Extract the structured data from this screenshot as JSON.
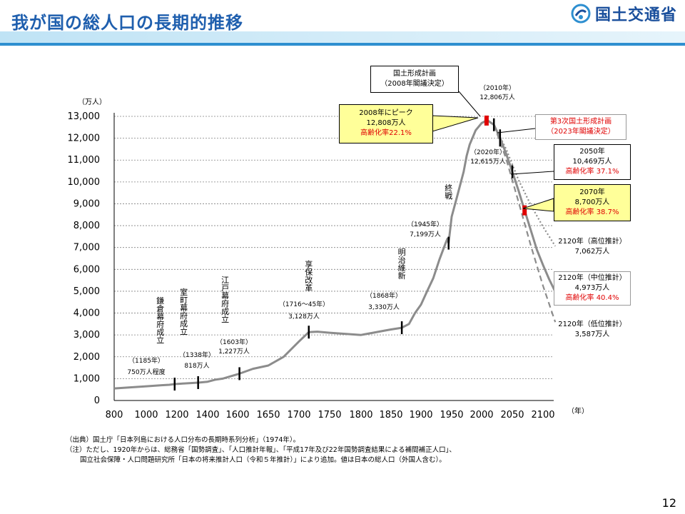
{
  "header": {
    "title": "我が国の総人口の長期的推移",
    "org": "国土交通省"
  },
  "page_number": "12",
  "footnotes": [
    "（出典）国土庁「日本列島における人口分布の長期時系列分析」（1974年）。",
    "（注）ただし、1920年からは、総務省「国勢調査」、「人口推計年報」、「平成17年及び22年国勢調査結果による補間補正人口」、",
    "国立社会保障・人口問題研究所「日本の将来推計人口（令和５年推計）」により追加。値は日本の総人口（外国人含む）。"
  ],
  "chart_data": {
    "type": "line",
    "ylabel": "（万人）",
    "xlabel": "（年）",
    "ylim": [
      0,
      13000
    ],
    "xlim": [
      800,
      2120
    ],
    "y_ticks": [
      "0",
      "1,000",
      "2,000",
      "3,000",
      "4,000",
      "5,000",
      "6,000",
      "7,000",
      "8,000",
      "9,000",
      "10,000",
      "11,000",
      "12,000",
      "13,000"
    ],
    "x_ticks": [
      "800",
      "1000",
      "1200",
      "1400",
      "1600",
      "1650",
      "1700",
      "1750",
      "1800",
      "1850",
      "1900",
      "1950",
      "2000",
      "2050",
      "2100"
    ],
    "grid": true,
    "series": [
      {
        "line": "solid",
        "color": "#8c8c8c",
        "points": [
          [
            800,
            551
          ],
          [
            900,
            600
          ],
          [
            1000,
            650
          ],
          [
            1100,
            700
          ],
          [
            1150,
            720
          ],
          [
            1185,
            750
          ],
          [
            1250,
            780
          ],
          [
            1338,
            818
          ],
          [
            1400,
            860
          ],
          [
            1450,
            950
          ],
          [
            1500,
            1000
          ],
          [
            1550,
            1100
          ],
          [
            1603,
            1227
          ],
          [
            1625,
            1450
          ],
          [
            1650,
            1600
          ],
          [
            1675,
            2000
          ],
          [
            1700,
            2700
          ],
          [
            1716,
            3128
          ],
          [
            1730,
            3150
          ],
          [
            1750,
            3100
          ],
          [
            1800,
            3000
          ],
          [
            1820,
            3100
          ],
          [
            1840,
            3200
          ],
          [
            1850,
            3250
          ],
          [
            1868,
            3330
          ],
          [
            1880,
            3500
          ],
          [
            1890,
            4000
          ],
          [
            1900,
            4384
          ],
          [
            1910,
            5000
          ],
          [
            1920,
            5596
          ],
          [
            1930,
            6445
          ],
          [
            1940,
            7193
          ],
          [
            1943,
            7400
          ],
          [
            1945,
            7199
          ],
          [
            1950,
            8411
          ],
          [
            1960,
            9430
          ],
          [
            1970,
            10467
          ],
          [
            1975,
            11194
          ],
          [
            1980,
            11706
          ],
          [
            1990,
            12361
          ],
          [
            2000,
            12693
          ],
          [
            2008,
            12808
          ],
          [
            2010,
            12806
          ],
          [
            2015,
            12709
          ],
          [
            2020,
            12615
          ],
          [
            2030,
            12012
          ],
          [
            2040,
            11284
          ],
          [
            2050,
            10469
          ],
          [
            2060,
            9615
          ],
          [
            2070,
            8700
          ],
          [
            2080,
            7800
          ],
          [
            2090,
            6900
          ],
          [
            2100,
            6200
          ],
          [
            2110,
            5550
          ],
          [
            2120,
            4973
          ]
        ]
      },
      {
        "line": "dotted",
        "color": "#8c8c8c",
        "points": [
          [
            2020,
            12615
          ],
          [
            2040,
            11500
          ],
          [
            2060,
            10100
          ],
          [
            2080,
            8950
          ],
          [
            2100,
            7950
          ],
          [
            2120,
            7062
          ]
        ]
      },
      {
        "line": "dashed",
        "color": "#8c8c8c",
        "points": [
          [
            2020,
            12615
          ],
          [
            2040,
            11050
          ],
          [
            2060,
            9100
          ],
          [
            2080,
            7100
          ],
          [
            2100,
            5250
          ],
          [
            2120,
            3587
          ]
        ]
      }
    ],
    "event_markers": [
      {
        "year": 1185,
        "value": 750,
        "label": "鎌倉幕府成立",
        "year_text": "（1185年）",
        "value_text": "750万人程度"
      },
      {
        "year": 1338,
        "value": 818,
        "label": "室町幕府成立",
        "year_text": "（1338年）",
        "value_text": "818万人"
      },
      {
        "year": 1603,
        "value": 1227,
        "label": "江戸幕府成立",
        "year_text": "（1603年）",
        "value_text": "1,227万人"
      },
      {
        "year": 1716,
        "value": 3128,
        "label": "享保改革",
        "year_text": "（1716～45年）",
        "value_text": "3,128万人"
      },
      {
        "year": 1868,
        "value": 3330,
        "label": "明治維新",
        "year_text": "（1868年）",
        "value_text": "3,330万人"
      },
      {
        "year": 1945,
        "value": 7199,
        "label": "終戦",
        "year_text": "（1945年）",
        "value_text": "7,199万人"
      },
      {
        "year": 2020,
        "value": 12615,
        "year_text": "（2020年）",
        "value_text": "12,615万人"
      },
      {
        "year": 2050,
        "value": 10469
      }
    ],
    "callouts": {
      "plan2008": {
        "line1": "国土形成計画",
        "line2": "（2008年閣議決定）"
      },
      "y2010": {
        "line1": "（2010年）",
        "line2": "12,806万人"
      },
      "peak": {
        "line1": "2008年にピーク",
        "line2": "12,808万人",
        "line3": "高齢化率22.1%"
      },
      "plan2023": {
        "line1": "第3次国土形成計画",
        "line2": "（2023年閣議決定）"
      },
      "y2050": {
        "line1": "2050年",
        "line2": "10,469万人",
        "line3": "高齢化率 37.1%"
      },
      "y2070": {
        "line1": "2070年",
        "line2": "8,700万人",
        "line3": "高齢化率 38.7%"
      },
      "high": {
        "line1": "2120年（高位推計）",
        "line2": "7,062万人"
      },
      "mid": {
        "line1": "2120年（中位推計）",
        "line2": "4,973万人",
        "line3": "高齢化率 40.4%"
      },
      "low": {
        "line1": "2120年（低位推計）",
        "line2": "3,587万人"
      }
    },
    "colors": {
      "line": "#8c8c8c",
      "highlight": "#e00000",
      "callout_fill": "#ffff99",
      "grid": "#808080"
    }
  }
}
